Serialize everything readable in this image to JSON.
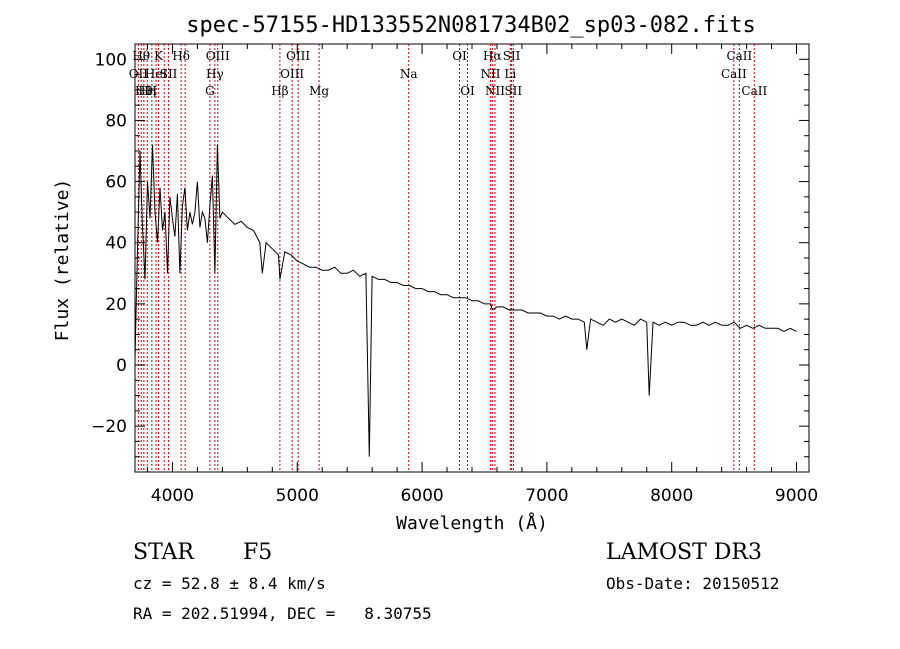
{
  "chart_data": {
    "type": "line",
    "title": "spec-57155-HD133552N081734B02_sp03-082.fits",
    "xlabel": "Wavelength (Å)",
    "ylabel": "Flux (relative)",
    "xlim": [
      3700,
      9100
    ],
    "ylim": [
      -35,
      105
    ],
    "x_ticks": [
      4000,
      5000,
      6000,
      7000,
      8000,
      9000
    ],
    "y_ticks": [
      -20,
      0,
      20,
      40,
      60,
      80,
      100
    ],
    "grid": false,
    "line_color": "#000000",
    "marker_color": "#cc0000",
    "series": [
      {
        "x": [
          3700,
          3720,
          3740,
          3760,
          3780,
          3800,
          3820,
          3840,
          3860,
          3880,
          3900,
          3920,
          3940,
          3960,
          3980,
          4000,
          4020,
          4040,
          4060,
          4080,
          4100,
          4120,
          4140,
          4160,
          4180,
          4200,
          4220,
          4240,
          4260,
          4280,
          4300,
          4320,
          4340,
          4360,
          4380,
          4400,
          4450,
          4500,
          4550,
          4600,
          4650,
          4700,
          4720,
          4750,
          4800,
          4850,
          4861,
          4900,
          4950,
          5000,
          5050,
          5100,
          5150,
          5200,
          5250,
          5300,
          5350,
          5400,
          5450,
          5500,
          5550,
          5577,
          5600,
          5650,
          5700,
          5750,
          5800,
          5850,
          5900,
          5950,
          6000,
          6050,
          6100,
          6150,
          6200,
          6250,
          6300,
          6350,
          6400,
          6450,
          6500,
          6550,
          6563,
          6600,
          6650,
          6700,
          6750,
          6800,
          6850,
          6900,
          6950,
          7000,
          7050,
          7100,
          7150,
          7200,
          7250,
          7300,
          7320,
          7350,
          7400,
          7450,
          7500,
          7550,
          7600,
          7650,
          7700,
          7750,
          7800,
          7820,
          7850,
          7900,
          7950,
          8000,
          8050,
          8100,
          8150,
          8200,
          8250,
          8300,
          8350,
          8400,
          8450,
          8500,
          8550,
          8600,
          8650,
          8700,
          8750,
          8800,
          8850,
          8900,
          8950,
          9000
        ],
        "y": [
          2,
          38,
          70,
          45,
          28,
          60,
          48,
          72,
          50,
          40,
          58,
          44,
          50,
          30,
          55,
          48,
          42,
          56,
          30,
          52,
          58,
          44,
          50,
          46,
          50,
          60,
          45,
          50,
          48,
          40,
          52,
          62,
          30,
          72,
          48,
          50,
          48,
          46,
          47,
          45,
          44,
          40,
          30,
          40,
          38,
          36,
          28,
          37,
          36,
          34,
          33,
          32,
          32,
          31,
          31,
          32,
          30,
          30,
          31,
          29,
          30,
          -30,
          29,
          28,
          28,
          27,
          27,
          26,
          26,
          25,
          25,
          24,
          24,
          23,
          23,
          22,
          22,
          22,
          21,
          21,
          20,
          20,
          18,
          19,
          19,
          18,
          18,
          18,
          17,
          17,
          17,
          16,
          16,
          15,
          16,
          15,
          15,
          14,
          5,
          15,
          14,
          13,
          15,
          14,
          15,
          14,
          13,
          15,
          14,
          -10,
          14,
          13,
          14,
          13,
          14,
          14,
          13,
          13,
          14,
          13,
          14,
          13,
          13,
          14,
          12,
          13,
          12,
          13,
          12,
          12,
          12,
          11,
          12,
          11
        ]
      }
    ],
    "lines": [
      {
        "wl": 3727,
        "label": "OII",
        "row": 1
      },
      {
        "wl": 3750,
        "label": "Hθ",
        "row": 0
      },
      {
        "wl": 3771,
        "label": "Hθ",
        "row": 2
      },
      {
        "wl": 3798,
        "label": "Hη",
        "row": 2
      },
      {
        "wl": 3835,
        "label": "H",
        "row": 2
      },
      {
        "wl": 3869,
        "label": "HeI",
        "row": 1
      },
      {
        "wl": 3889,
        "label": "K",
        "row": 0
      },
      {
        "wl": 3934,
        "label": "",
        "row": 0
      },
      {
        "wl": 3969,
        "label": "SII",
        "row": 1
      },
      {
        "wl": 4070,
        "label": "Hδ",
        "row": 0
      },
      {
        "wl": 4102,
        "label": "",
        "row": 0
      },
      {
        "wl": 4300,
        "label": "G",
        "row": 2
      },
      {
        "wl": 4340,
        "label": "Hγ",
        "row": 1
      },
      {
        "wl": 4363,
        "label": "OIII",
        "row": 0
      },
      {
        "wl": 4861,
        "label": "Hβ",
        "row": 2
      },
      {
        "wl": 4959,
        "label": "OIII",
        "row": 1
      },
      {
        "wl": 5007,
        "label": "OIII",
        "row": 0
      },
      {
        "wl": 5175,
        "label": "Mg",
        "row": 2
      },
      {
        "wl": 5893,
        "label": "Na",
        "row": 1
      },
      {
        "wl": 6300,
        "label": "OI",
        "row": 0
      },
      {
        "wl": 6364,
        "label": "OI",
        "row": 2
      },
      {
        "wl": 6548,
        "label": "NII",
        "row": 1
      },
      {
        "wl": 6563,
        "label": "Hα",
        "row": 0
      },
      {
        "wl": 6584,
        "label": "NII",
        "row": 2
      },
      {
        "wl": 6707,
        "label": "Li",
        "row": 1
      },
      {
        "wl": 6717,
        "label": "SII",
        "row": 0
      },
      {
        "wl": 6731,
        "label": "SII",
        "row": 2
      },
      {
        "wl": 8498,
        "label": "CaII",
        "row": 1
      },
      {
        "wl": 8542,
        "label": "CaII",
        "row": 0
      },
      {
        "wl": 8662,
        "label": "CaII",
        "row": 2
      }
    ]
  },
  "info": {
    "object_class": "STAR",
    "subclass": "F5",
    "survey": "LAMOST DR3",
    "cz": "cz = 52.8 ± 8.4 km/s",
    "obs_date": "Obs-Date: 20150512",
    "coords": "RA = 202.51994, DEC =   8.30755"
  }
}
